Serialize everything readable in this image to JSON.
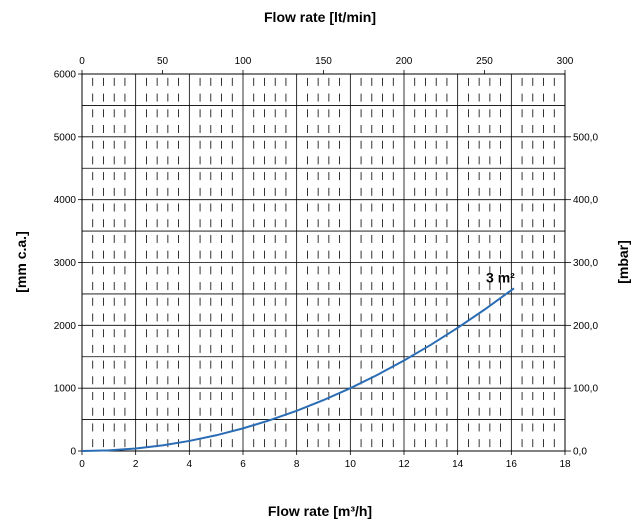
{
  "chart_data": {
    "type": "line",
    "title": "",
    "xlabel_bottom": "Flow rate [m³/h]",
    "xlabel_top": "Flow rate [lt/min]",
    "ylabel_left": "[mm c.a.]",
    "ylabel_right": "[mbar]",
    "xlim": [
      0,
      18
    ],
    "ylim": [
      0,
      6000
    ],
    "x_top_lim": [
      0,
      300
    ],
    "y_right_lim": [
      0,
      600
    ],
    "x_ticks": [
      "0",
      "2",
      "4",
      "6",
      "8",
      "10",
      "12",
      "14",
      "16",
      "18"
    ],
    "x_top_ticks": [
      "0",
      "50",
      "100",
      "150",
      "200",
      "250",
      "300"
    ],
    "y_ticks": [
      "0",
      "1000",
      "2000",
      "3000",
      "4000",
      "5000",
      "6000"
    ],
    "y_right_ticks": [
      "0,0",
      "100,0",
      "200,0",
      "300,0",
      "400,0",
      "500,0"
    ],
    "grid": true,
    "series": [
      {
        "name": "3 m²",
        "color": "#2a6db5",
        "x": [
          0,
          1,
          2,
          3,
          4,
          5,
          6,
          7,
          8,
          9,
          10,
          11,
          12,
          13,
          14,
          15,
          16.1
        ],
        "y": [
          0,
          10,
          40,
          90,
          160,
          250,
          360,
          490,
          640,
          810,
          1000,
          1210,
          1440,
          1690,
          1960,
          2250,
          2590
        ]
      }
    ]
  }
}
